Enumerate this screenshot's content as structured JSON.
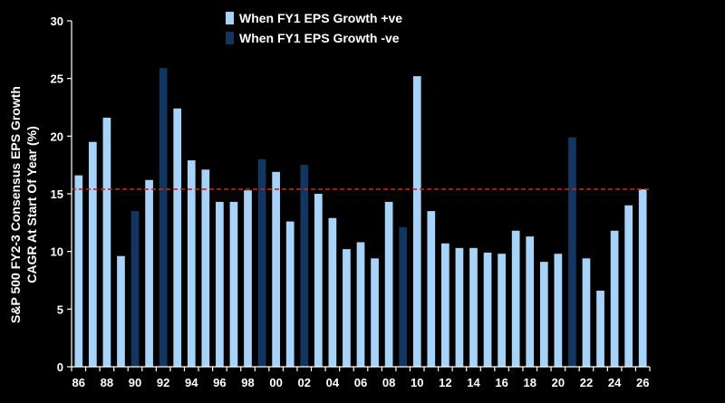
{
  "chart_data": {
    "type": "bar",
    "title": "",
    "xlabel": "",
    "ylabel_lines": [
      "S&P 500 FY2-3 Consensus EPS Growth",
      "CAGR At Start Of Year (%)"
    ],
    "ylim": [
      0,
      30
    ],
    "yticks": [
      0,
      5,
      10,
      15,
      20,
      25,
      30
    ],
    "reference_line": {
      "value": 15.4,
      "style": "dashed",
      "color": "#cc1f1f"
    },
    "legend": [
      {
        "label": "When FY1 EPS Growth +ve",
        "color": "#a7d3f8"
      },
      {
        "label": "When FY1 EPS Growth -ve",
        "color": "#12365f"
      }
    ],
    "categories": [
      "86",
      "87",
      "88",
      "89",
      "90",
      "91",
      "92",
      "93",
      "94",
      "95",
      "96",
      "97",
      "98",
      "99",
      "00",
      "01",
      "02",
      "03",
      "04",
      "05",
      "06",
      "07",
      "08",
      "09",
      "10",
      "11",
      "12",
      "13",
      "14",
      "15",
      "16",
      "17",
      "18",
      "19",
      "20",
      "21",
      "22",
      "23",
      "24",
      "25",
      "26"
    ],
    "xtick_labels": [
      "86",
      "",
      "88",
      "",
      "90",
      "",
      "92",
      "",
      "94",
      "",
      "96",
      "",
      "98",
      "",
      "00",
      "",
      "02",
      "",
      "04",
      "",
      "06",
      "",
      "08",
      "",
      "10",
      "",
      "12",
      "",
      "14",
      "",
      "16",
      "",
      "18",
      "",
      "20",
      "",
      "22",
      "",
      "24",
      "",
      "26"
    ],
    "values": [
      16.6,
      19.5,
      21.6,
      9.6,
      13.5,
      16.2,
      25.9,
      22.4,
      17.9,
      17.1,
      14.3,
      14.3,
      15.3,
      18.0,
      16.9,
      12.6,
      17.5,
      15.0,
      12.9,
      10.2,
      10.8,
      9.4,
      14.3,
      12.1,
      25.2,
      13.5,
      10.7,
      10.3,
      10.3,
      9.9,
      9.8,
      11.8,
      11.3,
      9.1,
      9.8,
      19.9,
      9.4,
      6.6,
      11.8,
      14.0,
      15.4
    ],
    "sign": [
      "+",
      "+",
      "+",
      "+",
      "-",
      "+",
      "-",
      "+",
      "+",
      "+",
      "+",
      "+",
      "+",
      "-",
      "+",
      "+",
      "-",
      "+",
      "+",
      "+",
      "+",
      "+",
      "+",
      "-",
      "+",
      "+",
      "+",
      "+",
      "+",
      "+",
      "+",
      "+",
      "+",
      "+",
      "+",
      "-",
      "+",
      "+",
      "+",
      "+",
      "+"
    ]
  }
}
